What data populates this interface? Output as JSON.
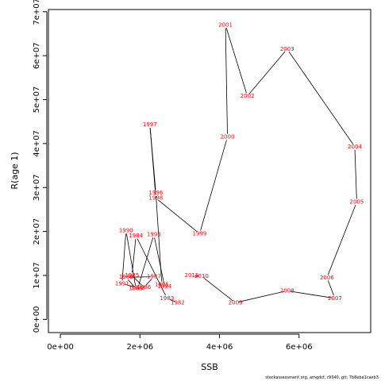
{
  "chart_data": {
    "type": "line",
    "xlabel": "SSB",
    "ylabel": "R(age 1)",
    "xlim": [
      -300000,
      7800000
    ],
    "ylim": [
      -3000000,
      70500000
    ],
    "x_ticks": [
      {
        "value": 0,
        "label": "0e+00"
      },
      {
        "value": 2000000,
        "label": "2e+06"
      },
      {
        "value": 4000000,
        "label": "4e+06"
      },
      {
        "value": 6000000,
        "label": "6e+06"
      }
    ],
    "y_ticks": [
      {
        "value": 0,
        "label": "0e+00"
      },
      {
        "value": 10000000,
        "label": "1e+07"
      },
      {
        "value": 20000000,
        "label": "2e+07"
      },
      {
        "value": 30000000,
        "label": "3e+07"
      },
      {
        "value": 40000000,
        "label": "4e+07"
      },
      {
        "value": 50000000,
        "label": "5e+07"
      },
      {
        "value": 60000000,
        "label": "6e+07"
      },
      {
        "value": 70000000,
        "label": "7e+07"
      }
    ],
    "line_color": "#000000",
    "label_color": "#ff0000",
    "grid": false,
    "points": [
      {
        "year": "1982",
        "ssb": 2950000,
        "r": 3800000
      },
      {
        "year": "1983",
        "ssb": 2680000,
        "r": 4800000
      },
      {
        "year": "1984",
        "ssb": 1900000,
        "r": 19000000
      },
      {
        "year": "1985",
        "ssb": 1800000,
        "r": 10000000
      },
      {
        "year": "1986",
        "ssb": 2100000,
        "r": 7300000
      },
      {
        "year": "1987",
        "ssb": 2350000,
        "r": 9700000
      },
      {
        "year": "1988",
        "ssb": 1650000,
        "r": 9600000
      },
      {
        "year": "1989",
        "ssb": 1900000,
        "r": 7000000
      },
      {
        "year": "1990",
        "ssb": 1650000,
        "r": 20200000
      },
      {
        "year": "1991",
        "ssb": 1550000,
        "r": 8100000
      },
      {
        "year": "1992",
        "ssb": 1950000,
        "r": 7200000
      },
      {
        "year": "1993",
        "ssb": 2350000,
        "r": 19300000
      },
      {
        "year": "1994",
        "ssb": 2620000,
        "r": 7500000
      },
      {
        "year": "1995",
        "ssb": 2550000,
        "r": 7900000
      },
      {
        "year": "1996",
        "ssb": 2400000,
        "r": 28800000
      },
      {
        "year": "1997",
        "ssb": 2250000,
        "r": 44300000
      },
      {
        "year": "1998",
        "ssb": 2400000,
        "r": 27600000
      },
      {
        "year": "1999",
        "ssb": 3500000,
        "r": 19500000
      },
      {
        "year": "2000",
        "ssb": 4200000,
        "r": 41500000
      },
      {
        "year": "2001",
        "ssb": 4150000,
        "r": 67000000
      },
      {
        "year": "2002",
        "ssb": 4700000,
        "r": 50800000
      },
      {
        "year": "2003",
        "ssb": 5700000,
        "r": 61500000
      },
      {
        "year": "2004",
        "ssb": 7400000,
        "r": 39300000
      },
      {
        "year": "2005",
        "ssb": 7450000,
        "r": 26700000
      },
      {
        "year": "2006",
        "ssb": 6700000,
        "r": 9500000
      },
      {
        "year": "2007",
        "ssb": 6900000,
        "r": 4800000
      },
      {
        "year": "2008",
        "ssb": 5700000,
        "r": 6500000
      },
      {
        "year": "2009",
        "ssb": 4400000,
        "r": 3800000
      },
      {
        "year": "2010",
        "ssb": 3550000,
        "r": 9800000
      },
      {
        "year": "2011",
        "ssb": 3300000,
        "r": 10000000
      }
    ]
  },
  "footer": {
    "text": "stockassessment.org, amgdcf, r9340, git: 7b8eba1caeb3"
  }
}
